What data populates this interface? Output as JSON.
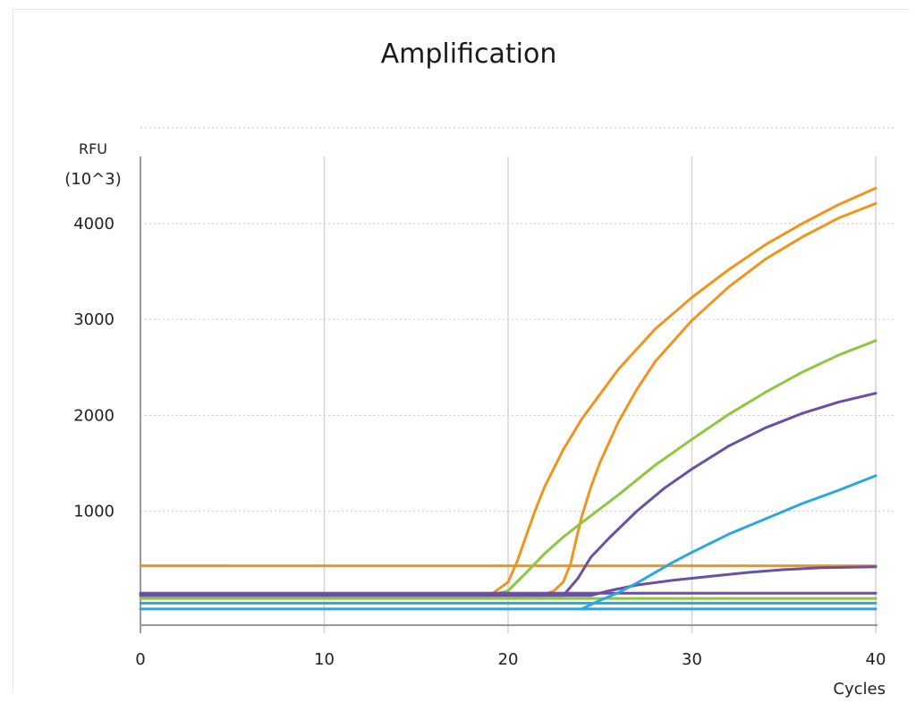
{
  "chart_data": {
    "type": "line",
    "title": "Amplification",
    "ylabel_line1": "RFU",
    "ylabel_line2": "(10^3)",
    "xlabel": "Cycles",
    "xlim": [
      0,
      40
    ],
    "ylim": [
      -180,
      4700
    ],
    "x_ticks": [
      0,
      10,
      20,
      30,
      40
    ],
    "x_tick_labels": [
      "0",
      "10",
      "20",
      "30",
      "40"
    ],
    "y_ticks": [
      1000,
      2000,
      3000,
      4000
    ],
    "y_tick_labels": [
      "1000",
      "2000",
      "3000",
      "4000"
    ],
    "grid": {
      "vertical": "solid",
      "horizontal": "dotted"
    },
    "series": [
      {
        "color": "#F0941E",
        "points": [
          [
            0,
            430
          ],
          [
            40,
            430
          ]
        ]
      },
      {
        "color": "#F0941E",
        "points": [
          [
            0,
            120
          ],
          [
            19,
            120
          ],
          [
            20,
            260
          ],
          [
            20.5,
            480
          ],
          [
            21,
            750
          ],
          [
            21.5,
            1020
          ],
          [
            22,
            1260
          ],
          [
            23,
            1640
          ],
          [
            24,
            1960
          ],
          [
            26,
            2480
          ],
          [
            28,
            2900
          ],
          [
            30,
            3230
          ],
          [
            32,
            3520
          ],
          [
            34,
            3780
          ],
          [
            36,
            4000
          ],
          [
            38,
            4200
          ],
          [
            40,
            4370
          ]
        ]
      },
      {
        "color": "#F0941E",
        "points": [
          [
            0,
            120
          ],
          [
            21.8,
            120
          ],
          [
            22.5,
            170
          ],
          [
            23,
            260
          ],
          [
            23.4,
            450
          ],
          [
            23.7,
            700
          ],
          [
            24,
            940
          ],
          [
            24.5,
            1250
          ],
          [
            25,
            1510
          ],
          [
            26,
            1930
          ],
          [
            27,
            2270
          ],
          [
            28,
            2560
          ],
          [
            30,
            2990
          ],
          [
            32,
            3340
          ],
          [
            34,
            3630
          ],
          [
            36,
            3860
          ],
          [
            38,
            4060
          ],
          [
            40,
            4210
          ]
        ]
      },
      {
        "color": "#8DC63F",
        "points": [
          [
            0,
            120
          ],
          [
            19,
            120
          ],
          [
            20,
            170
          ],
          [
            21,
            360
          ],
          [
            22,
            560
          ],
          [
            23,
            730
          ],
          [
            24,
            880
          ],
          [
            26,
            1170
          ],
          [
            28,
            1480
          ],
          [
            30,
            1750
          ],
          [
            32,
            2010
          ],
          [
            34,
            2240
          ],
          [
            36,
            2450
          ],
          [
            38,
            2630
          ],
          [
            40,
            2780
          ]
        ]
      },
      {
        "color": "#8DC63F",
        "points": [
          [
            0,
            90
          ],
          [
            40,
            90
          ]
        ]
      },
      {
        "color": "#6A4FA3",
        "points": [
          [
            0,
            145
          ],
          [
            40,
            145
          ]
        ]
      },
      {
        "color": "#6A4FA3",
        "points": [
          [
            0,
            120
          ],
          [
            23,
            120
          ],
          [
            23.8,
            300
          ],
          [
            24.5,
            520
          ],
          [
            25.5,
            720
          ],
          [
            27,
            1000
          ],
          [
            28.5,
            1240
          ],
          [
            30,
            1440
          ],
          [
            32,
            1680
          ],
          [
            34,
            1870
          ],
          [
            36,
            2020
          ],
          [
            38,
            2140
          ],
          [
            40,
            2230
          ]
        ]
      },
      {
        "color": "#6A4FA3",
        "points": [
          [
            0,
            120
          ],
          [
            24.5,
            120
          ],
          [
            25.5,
            170
          ],
          [
            27,
            230
          ],
          [
            29,
            280
          ],
          [
            31,
            320
          ],
          [
            33,
            360
          ],
          [
            35,
            390
          ],
          [
            37,
            410
          ],
          [
            40,
            420
          ]
        ]
      },
      {
        "color": "#29A8E0",
        "points": [
          [
            24,
            -20
          ],
          [
            25,
            70
          ],
          [
            26,
            150
          ],
          [
            27,
            250
          ],
          [
            28,
            360
          ],
          [
            29,
            470
          ],
          [
            30,
            570
          ],
          [
            32,
            760
          ],
          [
            34,
            920
          ],
          [
            36,
            1080
          ],
          [
            38,
            1220
          ],
          [
            40,
            1370
          ]
        ]
      },
      {
        "color": "#29A8E0",
        "points": [
          [
            0,
            40
          ],
          [
            40,
            40
          ]
        ]
      },
      {
        "color": "#29A8E0",
        "points": [
          [
            0,
            -20
          ],
          [
            40,
            -20
          ]
        ]
      }
    ]
  }
}
